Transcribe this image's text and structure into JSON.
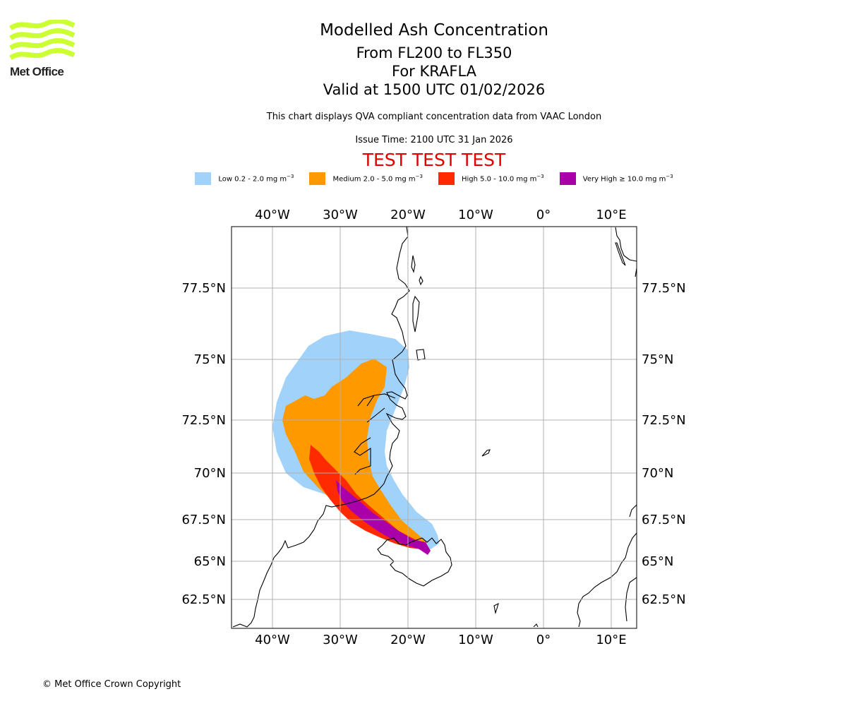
{
  "logo": {
    "text": "Met Office",
    "color": "#ccff33"
  },
  "header": {
    "title": "Modelled Ash Concentration",
    "levels": "From FL200 to FL350",
    "volcano": "For KRAFLA",
    "valid": "Valid at 1500 UTC 01/02/2026",
    "note": "This chart displays QVA compliant concentration data from VAAC London",
    "issue_time": "Issue Time: 2100 UTC 31 Jan 2026",
    "test_banner": "TEST TEST TEST",
    "test_color": "#e00000"
  },
  "legend": [
    {
      "label": "Low 0.2 - 2.0 mg m",
      "exp": "−3",
      "color": "#a0d2fa"
    },
    {
      "label": "Medium 2.0 - 5.0 mg m",
      "exp": "−3",
      "color": "#ff9900"
    },
    {
      "label": "High 5.0 - 10.0 mg m",
      "exp": "−3",
      "color": "#ff2a00"
    },
    {
      "label": "Very High  ≥  10.0 mg m",
      "exp": "−3",
      "color": "#aa00aa"
    }
  ],
  "map": {
    "lon_labels": [
      "40°W",
      "30°W",
      "20°W",
      "10°W",
      "0°",
      "10°E"
    ],
    "lat_labels": [
      "77.5°N",
      "75°N",
      "72.5°N",
      "70°N",
      "67.5°N",
      "65°N",
      "62.5°N"
    ],
    "grid_color": "#b0b0b0",
    "coast_color": "#000000"
  },
  "footer": {
    "copyright": "© Met Office Crown Copyright"
  }
}
